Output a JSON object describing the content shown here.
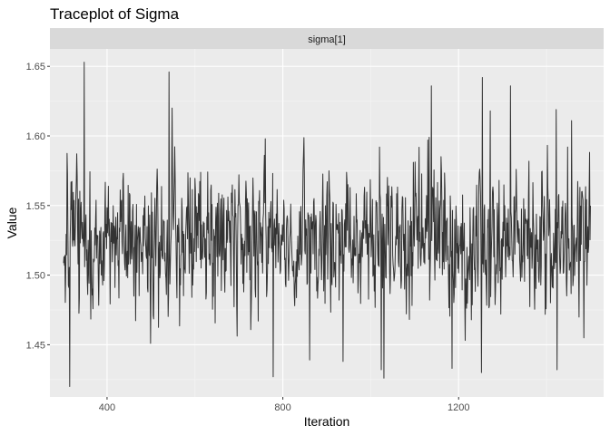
{
  "chart_data": {
    "type": "line",
    "title": "Traceplot of Sigma",
    "facet_label": "sigma[1]",
    "xlabel": "Iteration",
    "ylabel": "Value",
    "xlim": [
      270,
      1530
    ],
    "ylim": [
      1.4125,
      1.6625
    ],
    "x_ticks": [
      400,
      800,
      1200
    ],
    "x_minor_ticks": [
      600,
      1000,
      1400
    ],
    "y_ticks": [
      1.45,
      1.5,
      1.55,
      1.6,
      1.65
    ],
    "y_tick_labels": [
      "1.45",
      "1.50",
      "1.55",
      "1.60",
      "1.65"
    ],
    "grid": true,
    "panel_background": "#EBEBEB",
    "strip_background": "#D9D9D9",
    "line_color": "#333333",
    "series": [
      {
        "x": [
          301,
          1500
        ],
        "baseline": 1.525,
        "spread": 0.024,
        "seed": 11,
        "spikes": [
          {
            "x": 315,
            "y": 1.42
          },
          {
            "x": 348,
            "y": 1.653
          },
          {
            "x": 541,
            "y": 1.646
          },
          {
            "x": 548,
            "y": 1.62
          },
          {
            "x": 760,
            "y": 1.598
          },
          {
            "x": 778,
            "y": 1.427
          },
          {
            "x": 1030,
            "y": 1.426
          },
          {
            "x": 1024,
            "y": 1.432
          },
          {
            "x": 1133,
            "y": 1.599
          },
          {
            "x": 1138,
            "y": 1.636
          },
          {
            "x": 1185,
            "y": 1.433
          },
          {
            "x": 1252,
            "y": 1.43
          },
          {
            "x": 1254,
            "y": 1.642
          },
          {
            "x": 1272,
            "y": 1.618
          },
          {
            "x": 1318,
            "y": 1.636
          },
          {
            "x": 1424,
            "y": 1.432
          },
          {
            "x": 1422,
            "y": 1.619
          },
          {
            "x": 1448,
            "y": 1.592
          },
          {
            "x": 1485,
            "y": 1.455
          },
          {
            "x": 1457,
            "y": 1.611
          },
          {
            "x": 1020,
            "y": 1.592
          },
          {
            "x": 861,
            "y": 1.439
          },
          {
            "x": 937,
            "y": 1.438
          }
        ]
      }
    ]
  }
}
